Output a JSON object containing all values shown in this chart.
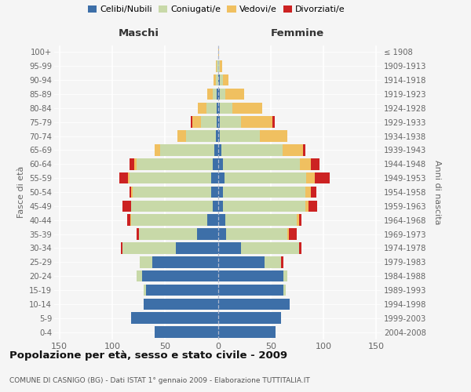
{
  "age_groups": [
    "0-4",
    "5-9",
    "10-14",
    "15-19",
    "20-24",
    "25-29",
    "30-34",
    "35-39",
    "40-44",
    "45-49",
    "50-54",
    "55-59",
    "60-64",
    "65-69",
    "70-74",
    "75-79",
    "80-84",
    "85-89",
    "90-94",
    "95-99",
    "100+"
  ],
  "birth_years": [
    "2004-2008",
    "1999-2003",
    "1994-1998",
    "1989-1993",
    "1984-1988",
    "1979-1983",
    "1974-1978",
    "1969-1973",
    "1964-1968",
    "1959-1963",
    "1954-1958",
    "1949-1953",
    "1944-1948",
    "1939-1943",
    "1934-1938",
    "1929-1933",
    "1924-1928",
    "1919-1923",
    "1914-1918",
    "1909-1913",
    "≤ 1908"
  ],
  "male_celibe": [
    60,
    82,
    70,
    68,
    72,
    62,
    40,
    20,
    10,
    5,
    6,
    6,
    5,
    3,
    2,
    1,
    1,
    1,
    0,
    0,
    0
  ],
  "male_coniugato": [
    0,
    0,
    0,
    2,
    5,
    12,
    50,
    55,
    72,
    77,
    75,
    78,
    72,
    52,
    28,
    15,
    10,
    4,
    2,
    1,
    0
  ],
  "male_vedovo": [
    0,
    0,
    0,
    0,
    0,
    0,
    0,
    0,
    1,
    0,
    1,
    1,
    2,
    5,
    8,
    8,
    8,
    5,
    2,
    1,
    0
  ],
  "male_divorziato": [
    0,
    0,
    0,
    0,
    0,
    0,
    2,
    2,
    3,
    8,
    2,
    8,
    5,
    0,
    0,
    2,
    0,
    0,
    0,
    0,
    0
  ],
  "female_celibe": [
    55,
    60,
    68,
    62,
    62,
    44,
    22,
    8,
    7,
    5,
    5,
    6,
    5,
    3,
    2,
    2,
    2,
    2,
    2,
    0,
    0
  ],
  "female_coniugato": [
    0,
    0,
    0,
    2,
    4,
    16,
    55,
    58,
    68,
    78,
    78,
    78,
    73,
    58,
    38,
    20,
    12,
    5,
    3,
    2,
    0
  ],
  "female_vedovo": [
    0,
    0,
    0,
    0,
    0,
    0,
    0,
    1,
    2,
    3,
    5,
    8,
    10,
    20,
    26,
    30,
    28,
    18,
    5,
    2,
    1
  ],
  "female_divorziato": [
    0,
    0,
    0,
    0,
    0,
    2,
    2,
    8,
    2,
    8,
    5,
    14,
    8,
    2,
    0,
    2,
    0,
    0,
    0,
    0,
    0
  ],
  "colors": {
    "celibe": "#3d6fa8",
    "coniugato": "#c8d9a8",
    "vedovo": "#f0c060",
    "divorziato": "#cc2222"
  },
  "title": "Popolazione per età, sesso e stato civile - 2009",
  "subtitle": "COMUNE DI CASNIGO (BG) - Dati ISTAT 1° gennaio 2009 - Elaborazione TUTTITALIA.IT",
  "xlabel_left": "Maschi",
  "xlabel_right": "Femmine",
  "ylabel_left": "Fasce di età",
  "ylabel_right": "Anni di nascita",
  "xlim": 155,
  "bg_color": "#f5f5f5",
  "legend_labels": [
    "Celibi/Nubili",
    "Coniugati/e",
    "Vedovi/e",
    "Divorziati/e"
  ]
}
